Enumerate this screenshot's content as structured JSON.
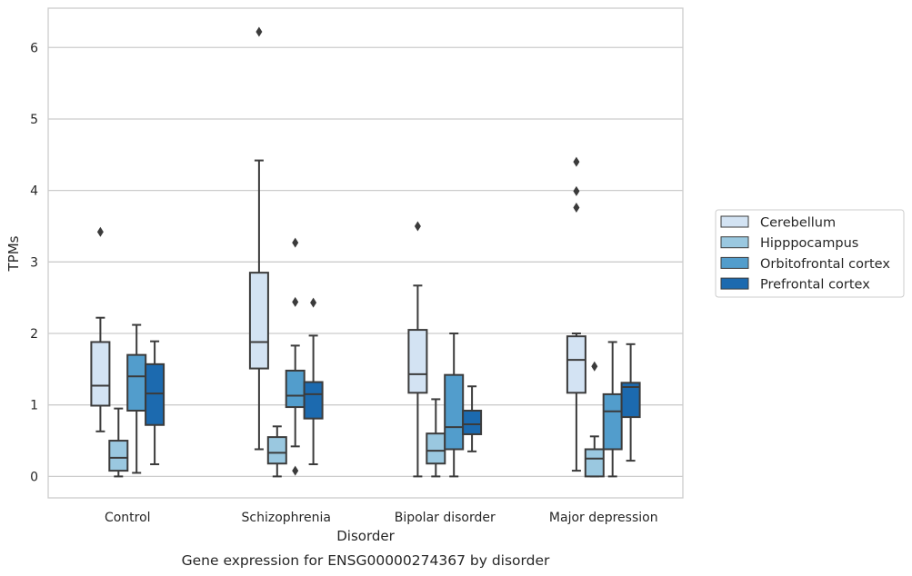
{
  "chart_data": {
    "type": "boxplot",
    "caption": "Gene expression for ENSG00000274367 by disorder",
    "xlabel": "Disorder",
    "ylabel": "TPMs",
    "ylim": [
      -0.3,
      6.55
    ],
    "yticks": [
      0,
      1,
      2,
      3,
      4,
      5,
      6
    ],
    "grid": true,
    "legend_position": "right",
    "categories": [
      "Control",
      "Schizophrenia",
      "Bipolar disorder",
      "Major depression"
    ],
    "series": [
      {
        "name": "Cerebellum",
        "color": "#d3e3f3",
        "boxes": [
          {
            "whislo": 0.63,
            "q1": 0.99,
            "med": 1.27,
            "q3": 1.88,
            "whishi": 2.22,
            "fliers": [
              3.42
            ]
          },
          {
            "whislo": 0.38,
            "q1": 1.51,
            "med": 1.88,
            "q3": 2.85,
            "whishi": 4.42,
            "fliers": [
              6.22
            ]
          },
          {
            "whislo": 0.0,
            "q1": 1.17,
            "med": 1.43,
            "q3": 2.05,
            "whishi": 2.67,
            "fliers": [
              3.5
            ]
          },
          {
            "whislo": 0.08,
            "q1": 1.17,
            "med": 1.63,
            "q3": 1.96,
            "whishi": 2.0,
            "fliers": [
              3.76,
              3.99,
              4.4
            ]
          }
        ]
      },
      {
        "name": "Hipppocampus",
        "color": "#9ac8e0",
        "boxes": [
          {
            "whislo": 0.0,
            "q1": 0.08,
            "med": 0.26,
            "q3": 0.5,
            "whishi": 0.95,
            "fliers": []
          },
          {
            "whislo": 0.0,
            "q1": 0.18,
            "med": 0.33,
            "q3": 0.55,
            "whishi": 0.7,
            "fliers": []
          },
          {
            "whislo": 0.0,
            "q1": 0.18,
            "med": 0.36,
            "q3": 0.6,
            "whishi": 1.08,
            "fliers": []
          },
          {
            "whislo": 0.0,
            "q1": 0.0,
            "med": 0.25,
            "q3": 0.38,
            "whishi": 0.56,
            "fliers": [
              1.54
            ]
          }
        ]
      },
      {
        "name": "Orbitofrontal cortex",
        "color": "#529dcc",
        "boxes": [
          {
            "whislo": 0.05,
            "q1": 0.92,
            "med": 1.4,
            "q3": 1.7,
            "whishi": 2.12,
            "fliers": []
          },
          {
            "whislo": 0.42,
            "q1": 0.97,
            "med": 1.13,
            "q3": 1.48,
            "whishi": 1.83,
            "fliers": [
              0.08,
              2.44,
              3.27
            ]
          },
          {
            "whislo": 0.0,
            "q1": 0.38,
            "med": 0.69,
            "q3": 1.42,
            "whishi": 2.0,
            "fliers": []
          },
          {
            "whislo": 0.0,
            "q1": 0.38,
            "med": 0.91,
            "q3": 1.15,
            "whishi": 1.88,
            "fliers": []
          }
        ]
      },
      {
        "name": "Prefrontal cortex",
        "color": "#1c6aaf",
        "boxes": [
          {
            "whislo": 0.17,
            "q1": 0.72,
            "med": 1.16,
            "q3": 1.57,
            "whishi": 1.89,
            "fliers": []
          },
          {
            "whislo": 0.17,
            "q1": 0.81,
            "med": 1.15,
            "q3": 1.32,
            "whishi": 1.97,
            "fliers": [
              2.43
            ]
          },
          {
            "whislo": 0.35,
            "q1": 0.59,
            "med": 0.73,
            "q3": 0.92,
            "whishi": 1.26,
            "fliers": []
          },
          {
            "whislo": 0.22,
            "q1": 0.83,
            "med": 1.25,
            "q3": 1.31,
            "whishi": 1.85,
            "fliers": []
          }
        ]
      }
    ]
  }
}
